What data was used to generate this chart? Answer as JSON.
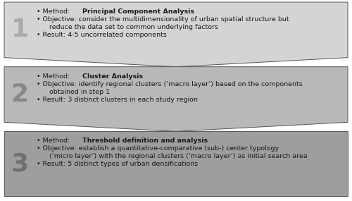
{
  "steps": [
    {
      "number": "1",
      "bg_color": "#d4d4d4",
      "number_color": "#aaaaaa",
      "method_prefix": "• Method: ",
      "method_bold": "Principal Component Analysis",
      "line2_prefix": "• Objective: ",
      "line2_text": "consider the multidimensionality of urban spatial structure but",
      "line2_cont": "  reduce the data set to common underlying factors",
      "line3_prefix": "• Result: ",
      "line3_text": "4-5 uncorrelated components"
    },
    {
      "number": "2",
      "bg_color": "#b8b8b8",
      "number_color": "#888888",
      "method_prefix": "• Method: ",
      "method_bold": "Cluster Analysis",
      "line2_prefix": "• Objective: ",
      "line2_text": "identify regional clusters (‘macro layer’) based on the components",
      "line2_cont": "  obtained in step 1",
      "line3_prefix": "• Result: ",
      "line3_text": "3 distinct clusters in each study region"
    },
    {
      "number": "3",
      "bg_color": "#9e9e9e",
      "number_color": "#707070",
      "method_prefix": "• Method: ",
      "method_bold": "Threshold definition and analysis",
      "line2_prefix": "• Objective: ",
      "line2_text": "establish a quantitative-comparative (sub-) center typology",
      "line2_cont": "  (‘micro layer’) with the regional clusters (‘macro layer’) as initial search area",
      "line3_prefix": "• Result: ",
      "line3_text": "5 distinct types of urban densifications"
    }
  ],
  "fig_width": 5.0,
  "fig_height": 2.85,
  "dpi": 100,
  "background_color": "#ffffff",
  "border_color": "#555555",
  "text_color": "#1a1a1a",
  "font_size": 6.8,
  "number_font_size": 26
}
